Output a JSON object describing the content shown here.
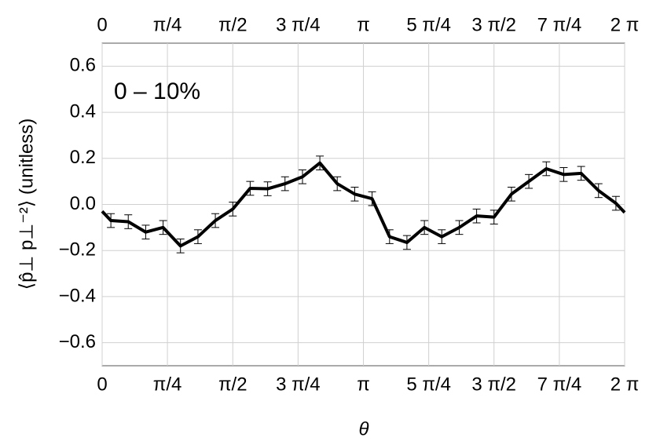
{
  "chart_data": {
    "type": "line",
    "xlabel": "θ",
    "ylabel": "⟨p̂⊥ p⊥⁻²⟩ (unitless)",
    "annotation": "0 – 10%",
    "color": "#000000",
    "x": [
      0,
      0.105,
      0.314,
      0.524,
      0.733,
      0.942,
      1.152,
      1.361,
      1.571,
      1.78,
      1.99,
      2.199,
      2.409,
      2.618,
      2.827,
      3.037,
      3.246,
      3.456,
      3.665,
      3.875,
      4.084,
      4.294,
      4.503,
      4.712,
      4.922,
      5.131,
      5.341,
      5.55,
      5.76,
      5.969,
      6.178,
      6.283
    ],
    "values": [
      -0.03,
      -0.07,
      -0.075,
      -0.12,
      -0.1,
      -0.18,
      -0.14,
      -0.07,
      -0.02,
      0.07,
      0.068,
      0.09,
      0.12,
      0.18,
      0.09,
      0.045,
      0.025,
      -0.14,
      -0.165,
      -0.1,
      -0.14,
      -0.1,
      -0.05,
      -0.055,
      0.045,
      0.1,
      0.155,
      0.13,
      0.135,
      0.06,
      0.005,
      -0.035
    ],
    "errors": [
      null,
      0.03,
      0.03,
      0.03,
      0.03,
      0.03,
      0.03,
      0.03,
      0.03,
      0.03,
      0.03,
      0.03,
      0.03,
      0.03,
      0.03,
      0.03,
      0.03,
      0.03,
      0.03,
      0.03,
      0.03,
      0.03,
      0.03,
      0.03,
      0.03,
      0.03,
      0.03,
      0.03,
      0.03,
      0.03,
      0.03,
      null
    ],
    "xlim": [
      0,
      6.283
    ],
    "xticks": [
      0,
      {
        "value": 0.785,
        "label": "π/4"
      },
      {
        "value": 1.571,
        "label": "π/2"
      },
      {
        "value": 2.356,
        "label": "3 π/4"
      },
      {
        "value": 3.142,
        "label": "π"
      },
      {
        "value": 3.927,
        "label": "5 π/4"
      },
      {
        "value": 4.712,
        "label": "3 π/2"
      },
      {
        "value": 5.498,
        "label": "7 π/4"
      },
      {
        "value": 6.283,
        "label": "2 π"
      }
    ],
    "ylim": [
      -0.7,
      0.7
    ],
    "yticks": [
      {
        "value": -0.6,
        "label": "−0.6"
      },
      {
        "value": -0.4,
        "label": "−0.4"
      },
      {
        "value": -0.2,
        "label": "−0.2"
      },
      {
        "value": 0,
        "label": "0.0"
      },
      0.2,
      0.4,
      0.6
    ],
    "grid": true
  }
}
